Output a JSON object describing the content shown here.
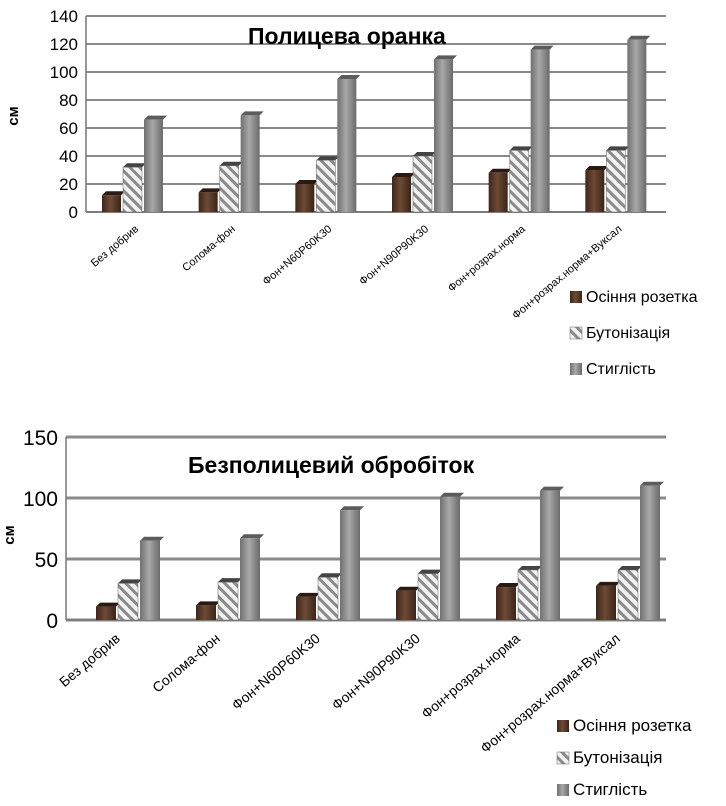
{
  "chart_data": [
    {
      "type": "bar",
      "title": "Полицева оранка",
      "ylabel": "см",
      "xlabel": "",
      "ylim": [
        0,
        140
      ],
      "yticks": [
        0,
        20,
        40,
        60,
        80,
        100,
        120,
        140
      ],
      "grid": true,
      "legend": "bottom-right",
      "categories": [
        "Без добрив",
        "Солома-фон",
        "Фон+N60P60K30",
        "Фон+N90P90K30",
        "Фон+розрах.норма",
        "Фон+розрах.норма+Вуксал"
      ],
      "series": [
        {
          "name": "Осіння розетка",
          "color": "#5a3a2a",
          "values": [
            12,
            14,
            20,
            25,
            28,
            30
          ]
        },
        {
          "name": "Бутонізація",
          "color": "#d0d0d0",
          "values": [
            32,
            33,
            37,
            40,
            44,
            44
          ]
        },
        {
          "name": "Стиглість",
          "color": "#8c8c8c",
          "values": [
            66,
            69,
            95,
            109,
            116,
            123
          ]
        }
      ]
    },
    {
      "type": "bar",
      "title": "Безполицевий обробіток",
      "ylabel": "см",
      "xlabel": "",
      "ylim": [
        0,
        150
      ],
      "yticks": [
        0,
        50,
        100,
        150
      ],
      "grid": true,
      "legend": "bottom-right",
      "categories": [
        "Без добрив",
        "Солома-фон",
        "Фон+N60P60K30",
        "Фон+N90P90K30",
        "Фон+розрах.норма",
        "Фон+розрах.норма+Вуксал"
      ],
      "series": [
        {
          "name": "Осіння розетка",
          "color": "#5a3a2a",
          "values": [
            11,
            12,
            19,
            24,
            27,
            28
          ]
        },
        {
          "name": "Бутонізація",
          "color": "#d0d0d0",
          "values": [
            30,
            31,
            35,
            38,
            41,
            41
          ]
        },
        {
          "name": "Стиглість",
          "color": "#8c8c8c",
          "values": [
            65,
            67,
            90,
            101,
            106,
            110
          ]
        }
      ]
    }
  ]
}
